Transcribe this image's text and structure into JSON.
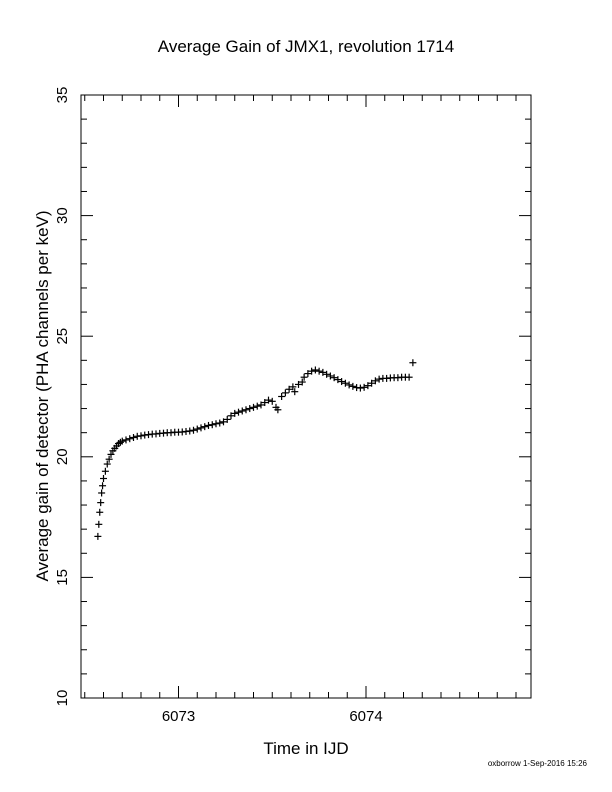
{
  "chart_data": {
    "type": "scatter",
    "title": "Average Gain of JMX1, revolution 1714",
    "xlabel": "Time in IJD",
    "ylabel": "Average gain of detector (PHA channels per keV)",
    "footer": "oxborrow 1-Sep-2016 15:26",
    "xlim": [
      6072.48,
      6074.88
    ],
    "ylim": [
      10,
      35
    ],
    "x_ticks": [
      "6073",
      "6074"
    ],
    "y_ticks": [
      "10",
      "15",
      "20",
      "25",
      "30",
      "35"
    ],
    "grid": false,
    "marker": "+",
    "colors": {
      "marker": "#000000",
      "axis": "#000000"
    },
    "series": [
      {
        "points": [
          [
            6072.57,
            16.7
          ],
          [
            6072.575,
            17.2
          ],
          [
            6072.58,
            17.7
          ],
          [
            6072.585,
            18.1
          ],
          [
            6072.59,
            18.5
          ],
          [
            6072.595,
            18.8
          ],
          [
            6072.6,
            19.1
          ],
          [
            6072.61,
            19.4
          ],
          [
            6072.62,
            19.7
          ],
          [
            6072.63,
            19.9
          ],
          [
            6072.64,
            20.1
          ],
          [
            6072.65,
            20.25
          ],
          [
            6072.66,
            20.35
          ],
          [
            6072.67,
            20.45
          ],
          [
            6072.68,
            20.55
          ],
          [
            6072.69,
            20.6
          ],
          [
            6072.7,
            20.65
          ],
          [
            6072.72,
            20.7
          ],
          [
            6072.74,
            20.75
          ],
          [
            6072.76,
            20.8
          ],
          [
            6072.78,
            20.85
          ],
          [
            6072.8,
            20.87
          ],
          [
            6072.82,
            20.9
          ],
          [
            6072.84,
            20.92
          ],
          [
            6072.86,
            20.94
          ],
          [
            6072.88,
            20.95
          ],
          [
            6072.9,
            20.97
          ],
          [
            6072.92,
            20.98
          ],
          [
            6072.94,
            21.0
          ],
          [
            6072.96,
            21.0
          ],
          [
            6072.98,
            21.02
          ],
          [
            6073.0,
            21.02
          ],
          [
            6073.02,
            21.03
          ],
          [
            6073.04,
            21.05
          ],
          [
            6073.06,
            21.07
          ],
          [
            6073.08,
            21.1
          ],
          [
            6073.1,
            21.15
          ],
          [
            6073.12,
            21.2
          ],
          [
            6073.14,
            21.25
          ],
          [
            6073.16,
            21.3
          ],
          [
            6073.18,
            21.33
          ],
          [
            6073.2,
            21.37
          ],
          [
            6073.22,
            21.4
          ],
          [
            6073.24,
            21.45
          ],
          [
            6073.26,
            21.55
          ],
          [
            6073.28,
            21.7
          ],
          [
            6073.3,
            21.8
          ],
          [
            6073.32,
            21.85
          ],
          [
            6073.34,
            21.9
          ],
          [
            6073.36,
            21.95
          ],
          [
            6073.38,
            22.0
          ],
          [
            6073.4,
            22.05
          ],
          [
            6073.42,
            22.1
          ],
          [
            6073.44,
            22.15
          ],
          [
            6073.46,
            22.25
          ],
          [
            6073.48,
            22.35
          ],
          [
            6073.5,
            22.3
          ],
          [
            6073.52,
            22.05
          ],
          [
            6073.53,
            21.95
          ],
          [
            6073.55,
            22.5
          ],
          [
            6073.57,
            22.65
          ],
          [
            6073.59,
            22.8
          ],
          [
            6073.61,
            22.9
          ],
          [
            6073.62,
            22.7
          ],
          [
            6073.64,
            23.0
          ],
          [
            6073.66,
            23.1
          ],
          [
            6073.67,
            23.3
          ],
          [
            6073.69,
            23.45
          ],
          [
            6073.71,
            23.55
          ],
          [
            6073.73,
            23.6
          ],
          [
            6073.75,
            23.55
          ],
          [
            6073.77,
            23.5
          ],
          [
            6073.79,
            23.42
          ],
          [
            6073.81,
            23.35
          ],
          [
            6073.83,
            23.28
          ],
          [
            6073.85,
            23.2
          ],
          [
            6073.87,
            23.12
          ],
          [
            6073.89,
            23.05
          ],
          [
            6073.91,
            22.98
          ],
          [
            6073.93,
            22.92
          ],
          [
            6073.95,
            22.87
          ],
          [
            6073.97,
            22.85
          ],
          [
            6073.99,
            22.88
          ],
          [
            6074.01,
            22.95
          ],
          [
            6074.03,
            23.05
          ],
          [
            6074.05,
            23.15
          ],
          [
            6074.07,
            23.22
          ],
          [
            6074.09,
            23.25
          ],
          [
            6074.11,
            23.25
          ],
          [
            6074.13,
            23.27
          ],
          [
            6074.15,
            23.28
          ],
          [
            6074.17,
            23.28
          ],
          [
            6074.19,
            23.3
          ],
          [
            6074.21,
            23.3
          ],
          [
            6074.23,
            23.3
          ],
          [
            6074.25,
            23.9
          ]
        ]
      }
    ]
  }
}
